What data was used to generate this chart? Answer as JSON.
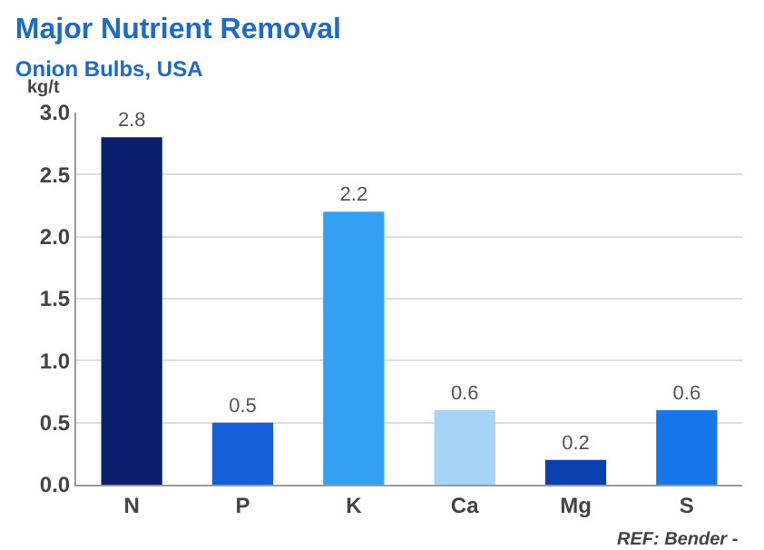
{
  "chart_data": {
    "type": "bar",
    "title": "Major Nutrient Removal",
    "subtitle": "Onion Bulbs, USA",
    "ylabel": "kg/t",
    "categories": [
      "N",
      "P",
      "K",
      "Ca",
      "Mg",
      "S"
    ],
    "values": [
      2.8,
      0.5,
      2.2,
      0.6,
      0.2,
      0.6
    ],
    "colors": [
      "#0a1f6e",
      "#1560d8",
      "#33a0f0",
      "#a6d4f7",
      "#0a3fae",
      "#1577ea"
    ],
    "ylim": [
      0,
      3.0
    ],
    "yticks": [
      {
        "value": 0,
        "label": "0.0"
      },
      0.5,
      {
        "value": 1,
        "label": "1.0"
      },
      1.5,
      {
        "value": 2,
        "label": "2.0"
      },
      2.5,
      {
        "value": 3,
        "label": "3.0"
      }
    ],
    "grid": "y",
    "data_labels": true,
    "annotations": [
      "REF: Bender -"
    ]
  }
}
